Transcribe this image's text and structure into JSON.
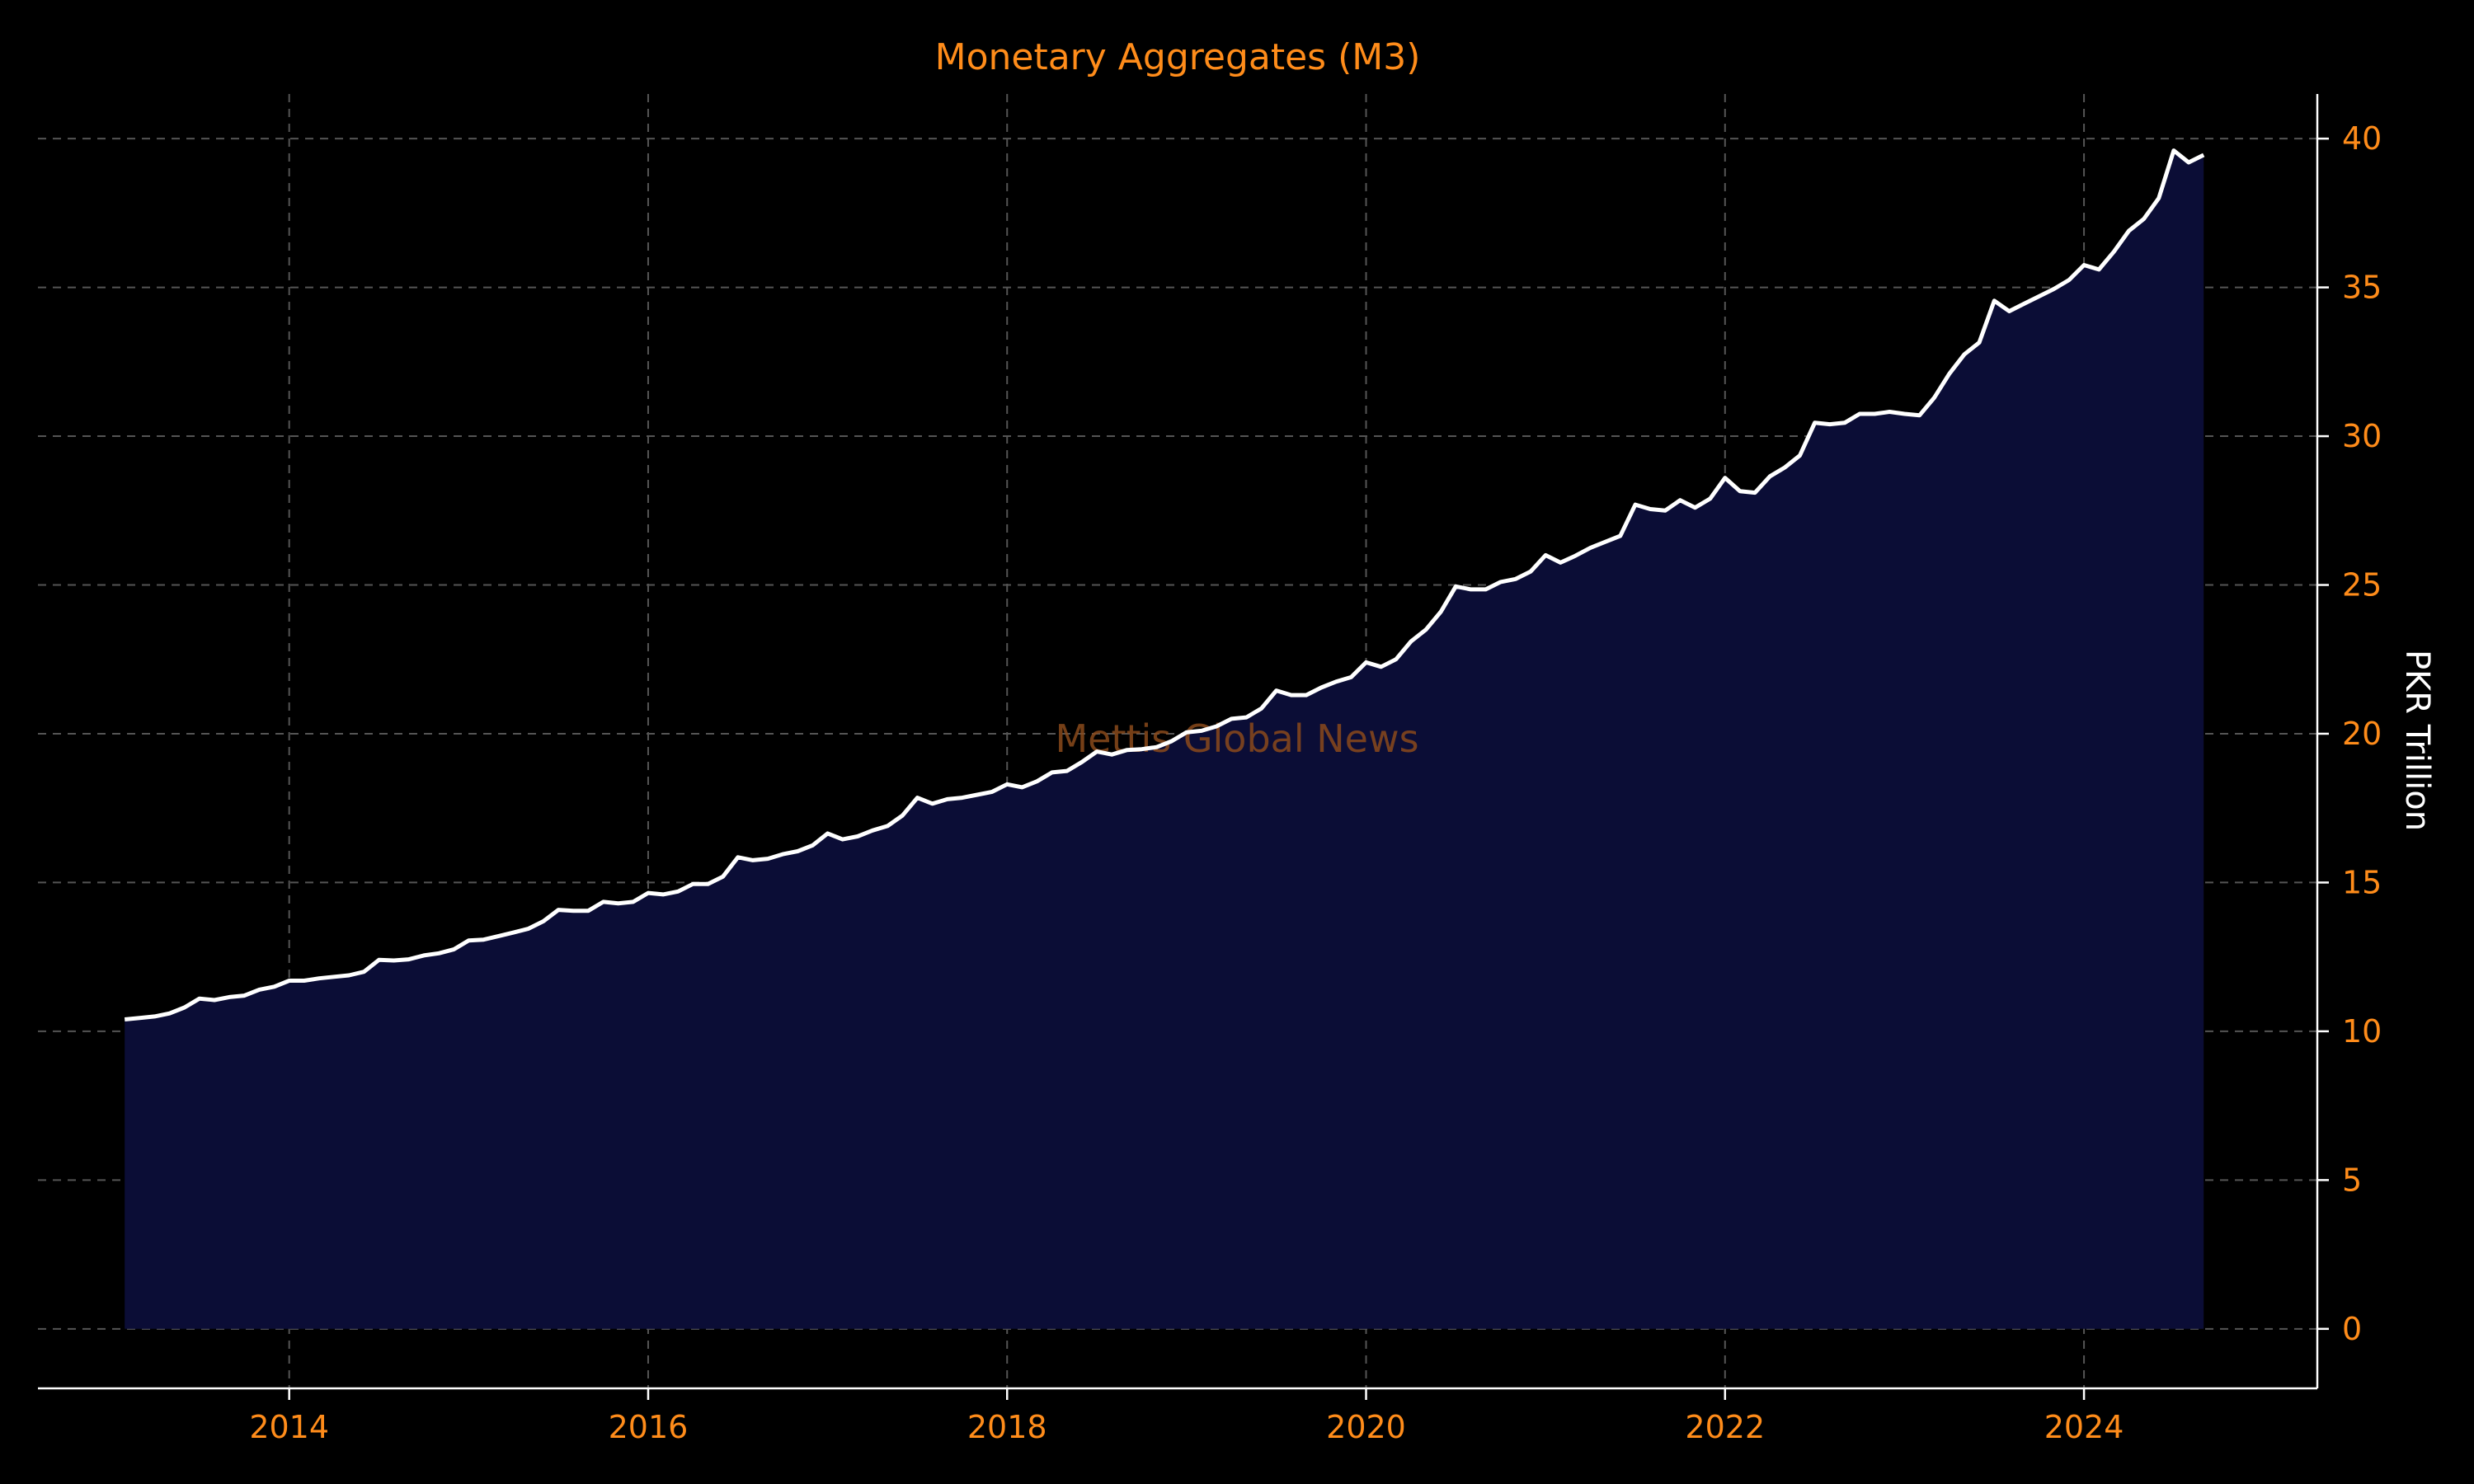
{
  "chart_data": {
    "type": "area",
    "title": "Monetary Aggregates (M3)",
    "ylabel": "PKR Trillion",
    "xlabel": "",
    "watermark": "Mettis Global News",
    "x_range": [
      2012.6,
      2025.3
    ],
    "ylim": [
      -2,
      41.5
    ],
    "x_ticks": [
      {
        "value": 2014,
        "label": "2014"
      },
      {
        "value": 2016,
        "label": "2016"
      },
      {
        "value": 2018,
        "label": "2018"
      },
      {
        "value": 2020,
        "label": "2020"
      },
      {
        "value": 2022,
        "label": "2022"
      },
      {
        "value": 2024,
        "label": "2024"
      }
    ],
    "y_ticks": [
      {
        "value": 0,
        "label": "0"
      },
      {
        "value": 5,
        "label": "5"
      },
      {
        "value": 10,
        "label": "10"
      },
      {
        "value": 15,
        "label": "15"
      },
      {
        "value": 20,
        "label": "20"
      },
      {
        "value": 25,
        "label": "25"
      },
      {
        "value": 30,
        "label": "30"
      },
      {
        "value": 35,
        "label": "35"
      },
      {
        "value": 40,
        "label": "40"
      }
    ],
    "grid": true,
    "colors": {
      "line": "#ffffff",
      "fill": "#0b0d36",
      "text": "#ff8c1a",
      "background": "#000000"
    },
    "series": [
      {
        "x": [
          "2013-02",
          "2013-03",
          "2013-04",
          "2013-05",
          "2013-06",
          "2013-07",
          "2013-08",
          "2013-09",
          "2013-10",
          "2013-11",
          "2013-12",
          "2014-01",
          "2014-02",
          "2014-03",
          "2014-04",
          "2014-05",
          "2014-06",
          "2014-07",
          "2014-08",
          "2014-09",
          "2014-10",
          "2014-11",
          "2014-12",
          "2015-01",
          "2015-02",
          "2015-03",
          "2015-04",
          "2015-05",
          "2015-06",
          "2015-07",
          "2015-08",
          "2015-09",
          "2015-10",
          "2015-11",
          "2015-12",
          "2016-01",
          "2016-02",
          "2016-03",
          "2016-04",
          "2016-05",
          "2016-06",
          "2016-07",
          "2016-08",
          "2016-09",
          "2016-10",
          "2016-11",
          "2016-12",
          "2017-01",
          "2017-02",
          "2017-03",
          "2017-04",
          "2017-05",
          "2017-06",
          "2017-07",
          "2017-08",
          "2017-09",
          "2017-10",
          "2017-11",
          "2017-12",
          "2018-01",
          "2018-02",
          "2018-03",
          "2018-04",
          "2018-05",
          "2018-06",
          "2018-07",
          "2018-08",
          "2018-09",
          "2018-10",
          "2018-11",
          "2018-12",
          "2019-01",
          "2019-02",
          "2019-03",
          "2019-04",
          "2019-05",
          "2019-06",
          "2019-07",
          "2019-08",
          "2019-09",
          "2019-10",
          "2019-11",
          "2019-12",
          "2020-01",
          "2020-02",
          "2020-03",
          "2020-04",
          "2020-05",
          "2020-06",
          "2020-07",
          "2020-08",
          "2020-09",
          "2020-10",
          "2020-11",
          "2020-12",
          "2021-01",
          "2021-02",
          "2021-03",
          "2021-04",
          "2021-05",
          "2021-06",
          "2021-07",
          "2021-08",
          "2021-09",
          "2021-10",
          "2021-11",
          "2021-12",
          "2022-01",
          "2022-02",
          "2022-03",
          "2022-04",
          "2022-05",
          "2022-06",
          "2022-07",
          "2022-08",
          "2022-09",
          "2022-10",
          "2022-11",
          "2022-12",
          "2023-01",
          "2023-02",
          "2023-03",
          "2023-04",
          "2023-05",
          "2023-06",
          "2023-07",
          "2023-08",
          "2023-09",
          "2023-10",
          "2023-11",
          "2023-12",
          "2024-01",
          "2024-02",
          "2024-03",
          "2024-04",
          "2024-05",
          "2024-06",
          "2024-07",
          "2024-08",
          "2024-09"
        ],
        "values": [
          10.4,
          10.45,
          10.5,
          10.6,
          10.8,
          11.1,
          11.05,
          11.15,
          11.2,
          11.4,
          11.5,
          11.7,
          11.7,
          11.78,
          11.83,
          11.88,
          12.0,
          12.4,
          12.38,
          12.42,
          12.55,
          12.62,
          12.75,
          13.05,
          13.08,
          13.2,
          13.32,
          13.45,
          13.7,
          14.08,
          14.05,
          14.05,
          14.35,
          14.3,
          14.35,
          14.65,
          14.6,
          14.7,
          14.95,
          14.95,
          15.2,
          15.85,
          15.75,
          15.8,
          15.95,
          16.05,
          16.25,
          16.65,
          16.45,
          16.55,
          16.75,
          16.9,
          17.25,
          17.85,
          17.65,
          17.8,
          17.85,
          17.95,
          18.05,
          18.3,
          18.2,
          18.4,
          18.7,
          18.75,
          19.05,
          19.4,
          19.3,
          19.45,
          19.48,
          19.55,
          19.75,
          20.05,
          20.1,
          20.25,
          20.5,
          20.55,
          20.85,
          21.45,
          21.3,
          21.3,
          21.55,
          21.75,
          21.9,
          22.4,
          22.25,
          22.5,
          23.1,
          23.5,
          24.1,
          24.95,
          24.85,
          24.85,
          25.1,
          25.2,
          25.45,
          26.0,
          25.75,
          25.98,
          26.25,
          26.45,
          26.65,
          27.7,
          27.55,
          27.5,
          27.85,
          27.6,
          27.9,
          28.6,
          28.15,
          28.1,
          28.65,
          28.95,
          29.35,
          30.45,
          30.4,
          30.45,
          30.75,
          30.75,
          30.82,
          30.75,
          30.7,
          31.3,
          32.1,
          32.75,
          33.15,
          34.55,
          34.2,
          34.45,
          34.7,
          34.95,
          35.25,
          35.75,
          35.6,
          36.2,
          36.9,
          37.3,
          38.0,
          39.6,
          39.2,
          39.45
        ]
      }
    ]
  }
}
